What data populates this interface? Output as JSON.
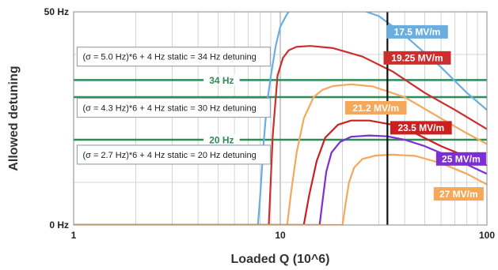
{
  "chart_data": {
    "type": "line",
    "xlabel": "Loaded Q (10^6)",
    "ylabel": "Allowed detuning",
    "x_scale": "log",
    "xlim": [
      1,
      100
    ],
    "ylim": [
      0,
      50
    ],
    "grid": true,
    "x_ticks": [
      {
        "value": 1,
        "label": "1"
      },
      {
        "value": 10,
        "label": "10"
      },
      {
        "value": 100,
        "label": "100"
      }
    ],
    "y_ticks": [
      {
        "value": 0,
        "label": "0 Hz"
      },
      {
        "value": 50,
        "label": "50 Hz"
      }
    ],
    "vertical_marker": {
      "x": 33,
      "color": "#111111"
    },
    "reference_lines": [
      {
        "y": 34,
        "label": "34 Hz",
        "label_x": 5.2,
        "color": "#2e8b57"
      },
      {
        "y": 30,
        "label": "",
        "label_x": null,
        "color": "#2e8b57"
      },
      {
        "y": 20,
        "label": "20 Hz",
        "label_x": 5.2,
        "color": "#2e8b57"
      }
    ],
    "annotations": [
      {
        "text": "(σ = 5.0 Hz)*6 + 4 Hz static = 34 Hz detuning",
        "x": 1.04,
        "y": 39.5
      },
      {
        "text": "(σ = 4.3 Hz)*6 + 4 Hz static = 30 Hz detuning",
        "x": 1.04,
        "y": 27.5
      },
      {
        "text": "(σ = 2.7 Hz)*6 + 4 Hz static = 20 Hz detuning",
        "x": 1.04,
        "y": 16.5
      }
    ],
    "series": [
      {
        "name": "17.5 MV/m",
        "color": "#6aaee0",
        "label_x": 46,
        "label_y": 45.3,
        "x": [
          7.8,
          8.0,
          8.3,
          8.6,
          9.0,
          9.5,
          10.0,
          10.7,
          11.3,
          12,
          15,
          20,
          30,
          40,
          60,
          80,
          100
        ],
        "y": [
          0,
          7,
          19,
          28,
          35,
          42,
          46.5,
          49.2,
          51,
          52,
          52,
          52,
          49,
          44.5,
          37,
          31,
          27
        ]
      },
      {
        "name": "19.25 MV/m",
        "color": "#cc2e2e",
        "label_x": 46,
        "label_y": 39.2,
        "x": [
          8.8,
          9.2,
          9.7,
          10.3,
          11,
          12,
          14,
          18,
          25,
          35,
          50,
          70,
          100
        ],
        "y": [
          0,
          21,
          35,
          39.2,
          41,
          41.8,
          42,
          41.5,
          39.5,
          36,
          31,
          27,
          22.5
        ]
      },
      {
        "name": "21.2 MV/m",
        "color": "#f5a85a",
        "label_x": 29,
        "label_y": 27.5,
        "x": [
          10.8,
          11.3,
          12,
          13,
          14.5,
          16,
          18,
          22,
          28,
          40,
          60,
          80,
          100
        ],
        "y": [
          0,
          8,
          17,
          25,
          30,
          31.7,
          32.6,
          33,
          32.5,
          30,
          25,
          21.5,
          19
        ]
      },
      {
        "name": "23.5 MV/m",
        "color": "#cc2020",
        "label_x": 48,
        "label_y": 22.8,
        "x": [
          13,
          13.8,
          15,
          16.5,
          19,
          22,
          27,
          35,
          45,
          60,
          80,
          100
        ],
        "y": [
          0,
          7,
          15,
          20.5,
          23.5,
          24.5,
          24.5,
          23.5,
          21.5,
          18.5,
          16,
          14
        ]
      },
      {
        "name": "25 MV/m",
        "color": "#7b2fd4",
        "label_x": 75,
        "label_y": 15.5,
        "x": [
          15.5,
          16,
          16.7,
          17.7,
          19.5,
          22,
          27,
          33,
          40,
          50,
          70,
          100
        ],
        "y": [
          0,
          5.5,
          12.5,
          17,
          19.5,
          20.7,
          21,
          20.8,
          20,
          18.5,
          15.5,
          12
        ]
      },
      {
        "name": "27 MV/m",
        "color": "#f5a85a",
        "label_x": 73,
        "label_y": 7.3,
        "x": [
          20,
          20.7,
          21.5,
          22.8,
          25,
          29,
          35,
          45,
          60,
          80,
          100
        ],
        "y": [
          0,
          5,
          10,
          13.5,
          15.5,
          16.3,
          16.5,
          16.2,
          14.5,
          12,
          9.5
        ]
      }
    ]
  }
}
